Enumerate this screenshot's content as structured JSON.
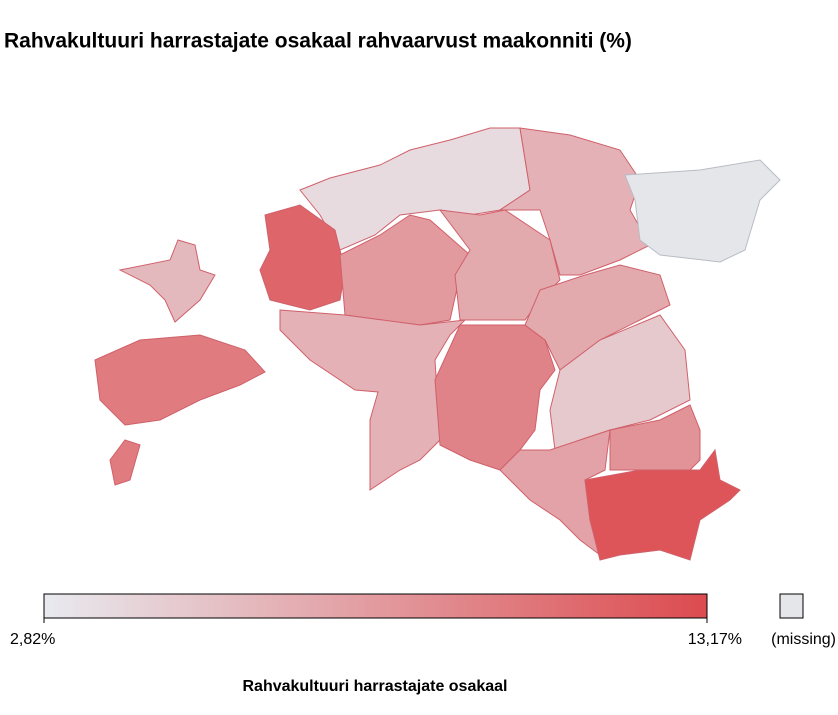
{
  "chart_data": {
    "type": "choropleth",
    "title": "Rahvakultuuri harrastajate osakaal rahvaarvust maakonniti (%)",
    "legend_title": "Rahvakultuuri harrastajate osakaal",
    "values": [
      3.8,
      6.5,
      null,
      6.0,
      10.0,
      11.5,
      8.0,
      7.0,
      6.5,
      9.5,
      7.0,
      5.0,
      8.5,
      7.5,
      12.5
    ],
    "colorbar": {
      "lim": [
        2.82,
        13.17
      ],
      "colors": [
        "#e8eaef",
        "#dc4b4f"
      ],
      "ticks": [
        {
          "value": 2.82,
          "label": "2,82%"
        },
        {
          "value": 13.17,
          "label": "13,17%"
        }
      ]
    },
    "missing_label": "(missing)",
    "missing_color": "#e4e6ea"
  }
}
